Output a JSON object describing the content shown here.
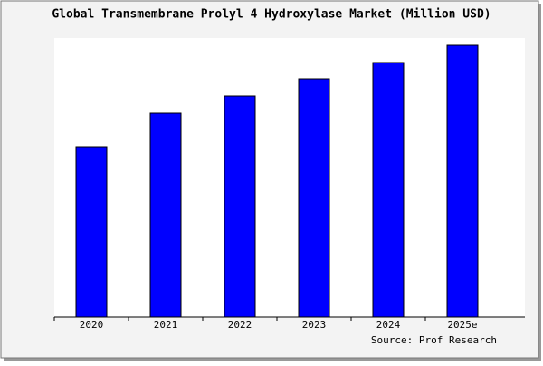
{
  "chart_data": {
    "type": "bar",
    "title": "Global Transmembrane Prolyl 4 Hydroxylase Market (Million USD)",
    "categories": [
      "2020",
      "2021",
      "2022",
      "2023",
      "2024",
      "2025e"
    ],
    "values": [
      188,
      225,
      244,
      263,
      281,
      300
    ],
    "color": "#0000ff",
    "ylim": [
      0,
      305
    ],
    "source": "Source: Prof Research"
  }
}
